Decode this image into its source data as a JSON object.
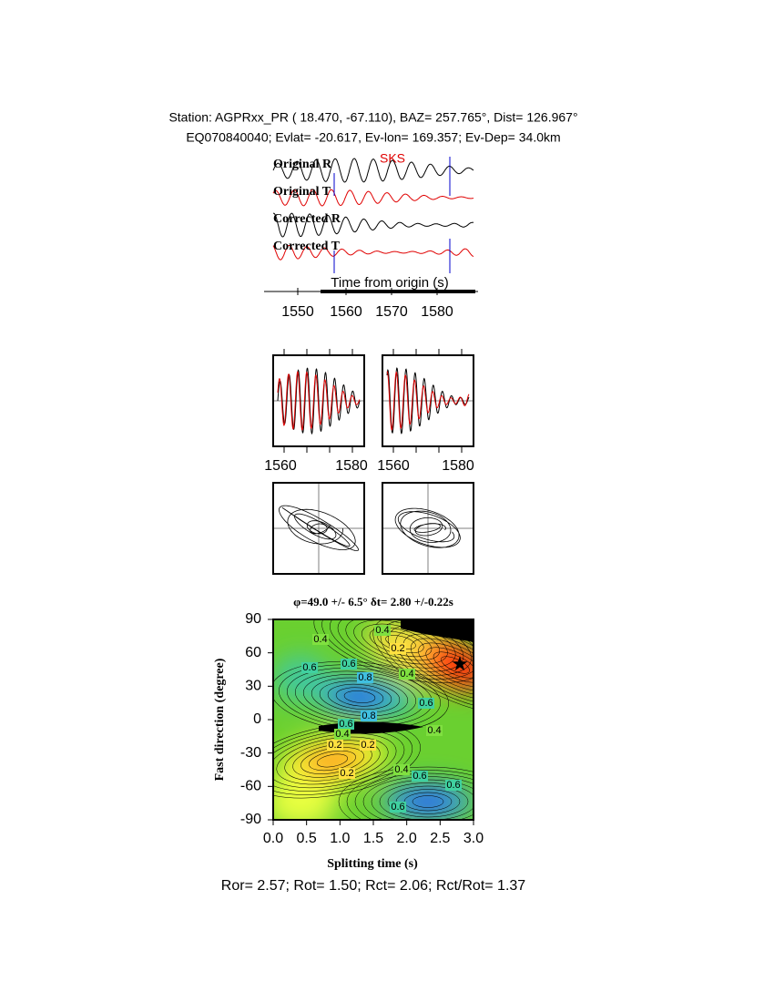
{
  "header": {
    "line1": "Station: AGPRxx_PR (  18.470,  -67.110), BAZ=  257.765°, Dist=  126.967°",
    "line2": "EQ070840040; Evlat= -20.617, Ev-lon= 169.357; Ev-Dep= 34.0km"
  },
  "waveforms": {
    "traces": [
      "Original R",
      "Original T",
      "Corrected R",
      "Corrected T"
    ],
    "phase": "SKS",
    "xlabel": "Time from origin (s)",
    "xticks": [
      "1550",
      "1560",
      "1570",
      "1580"
    ]
  },
  "windows": {
    "xticks": [
      [
        "1560",
        "1580"
      ],
      [
        "1560",
        "1580"
      ]
    ]
  },
  "grid_search": {
    "title": "φ=49.0 +/- 6.5° δt= 2.80 +/-0.22s",
    "ylabel": "Fast direction (degree)",
    "xlabel": "Splitting time (s)",
    "yticks": [
      "90",
      "60",
      "30",
      "0",
      "-30",
      "-60",
      "-90"
    ],
    "xticks": [
      "0.0",
      "0.5",
      "1.0",
      "1.5",
      "2.0",
      "2.5",
      "3.0"
    ],
    "contour_labels": [
      "0.4",
      "0.4",
      "0.2",
      "0.6",
      "0.6",
      "0.4",
      "0.8",
      "0.6",
      "0.8",
      "0.6",
      "0.4",
      "0.4",
      "0.2",
      "0.2",
      "0.2",
      "0.4",
      "0.6",
      "0.6",
      "0.6"
    ]
  },
  "footer": "Ror= 2.57; Rot= 1.50; Rct= 2.06; Rct/Rot= 1.37"
}
